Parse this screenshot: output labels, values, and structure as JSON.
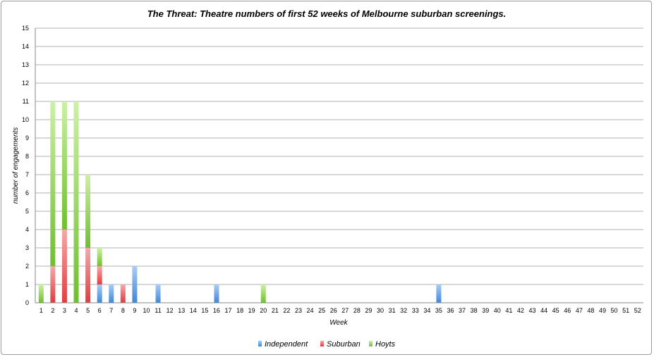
{
  "colors": {
    "independent": "#4a90e2",
    "suburban": "#e8474a",
    "hoyts": "#7dc53c",
    "grid": "#b0b0b0"
  },
  "chart_data": {
    "type": "bar",
    "stacked": true,
    "title": "The Threat: Theatre numbers of first 52 weeks of Melbourne suburban screenings.",
    "xlabel": "Week",
    "ylabel": "number of engagements",
    "ylim": [
      0,
      15
    ],
    "yticks": [
      "0",
      "1",
      "2",
      "3",
      "4",
      "5",
      "6",
      "7",
      "8",
      "9",
      "10",
      "11",
      "12",
      "13",
      "14",
      "15"
    ],
    "grid": true,
    "legend_position": "bottom",
    "categories": [
      "1",
      "2",
      "3",
      "4",
      "5",
      "6",
      "7",
      "8",
      "9",
      "10",
      "11",
      "12",
      "13",
      "14",
      "15",
      "16",
      "17",
      "18",
      "19",
      "20",
      "21",
      "22",
      "23",
      "24",
      "25",
      "26",
      "27",
      "28",
      "29",
      "30",
      "31",
      "32",
      "33",
      "34",
      "35",
      "36",
      "37",
      "38",
      "39",
      "40",
      "41",
      "42",
      "43",
      "44",
      "45",
      "46",
      "47",
      "48",
      "49",
      "50",
      "51",
      "52"
    ],
    "series": [
      {
        "name": "Independent",
        "color_key": "independent",
        "values": [
          0,
          0,
          0,
          0,
          0,
          1,
          1,
          0,
          2,
          0,
          1,
          0,
          0,
          0,
          0,
          1,
          0,
          0,
          0,
          0,
          0,
          0,
          0,
          0,
          0,
          0,
          0,
          0,
          0,
          0,
          0,
          0,
          0,
          0,
          1,
          0,
          0,
          0,
          0,
          0,
          0,
          0,
          0,
          0,
          0,
          0,
          0,
          0,
          0,
          0,
          0,
          0
        ]
      },
      {
        "name": "Suburban",
        "color_key": "suburban",
        "values": [
          0,
          2,
          4,
          0,
          3,
          1,
          0,
          1,
          0,
          0,
          0,
          0,
          0,
          0,
          0,
          0,
          0,
          0,
          0,
          0,
          0,
          0,
          0,
          0,
          0,
          0,
          0,
          0,
          0,
          0,
          0,
          0,
          0,
          0,
          0,
          0,
          0,
          0,
          0,
          0,
          0,
          0,
          0,
          0,
          0,
          0,
          0,
          0,
          0,
          0,
          0,
          0
        ]
      },
      {
        "name": "Hoyts",
        "color_key": "hoyts",
        "values": [
          1,
          9,
          7,
          11,
          4,
          1,
          0,
          0,
          0,
          0,
          0,
          0,
          0,
          0,
          0,
          0,
          0,
          0,
          0,
          1,
          0,
          0,
          0,
          0,
          0,
          0,
          0,
          0,
          0,
          0,
          0,
          0,
          0,
          0,
          0,
          0,
          0,
          0,
          0,
          0,
          0,
          0,
          0,
          0,
          0,
          0,
          0,
          0,
          0,
          0,
          0,
          0
        ]
      }
    ]
  }
}
